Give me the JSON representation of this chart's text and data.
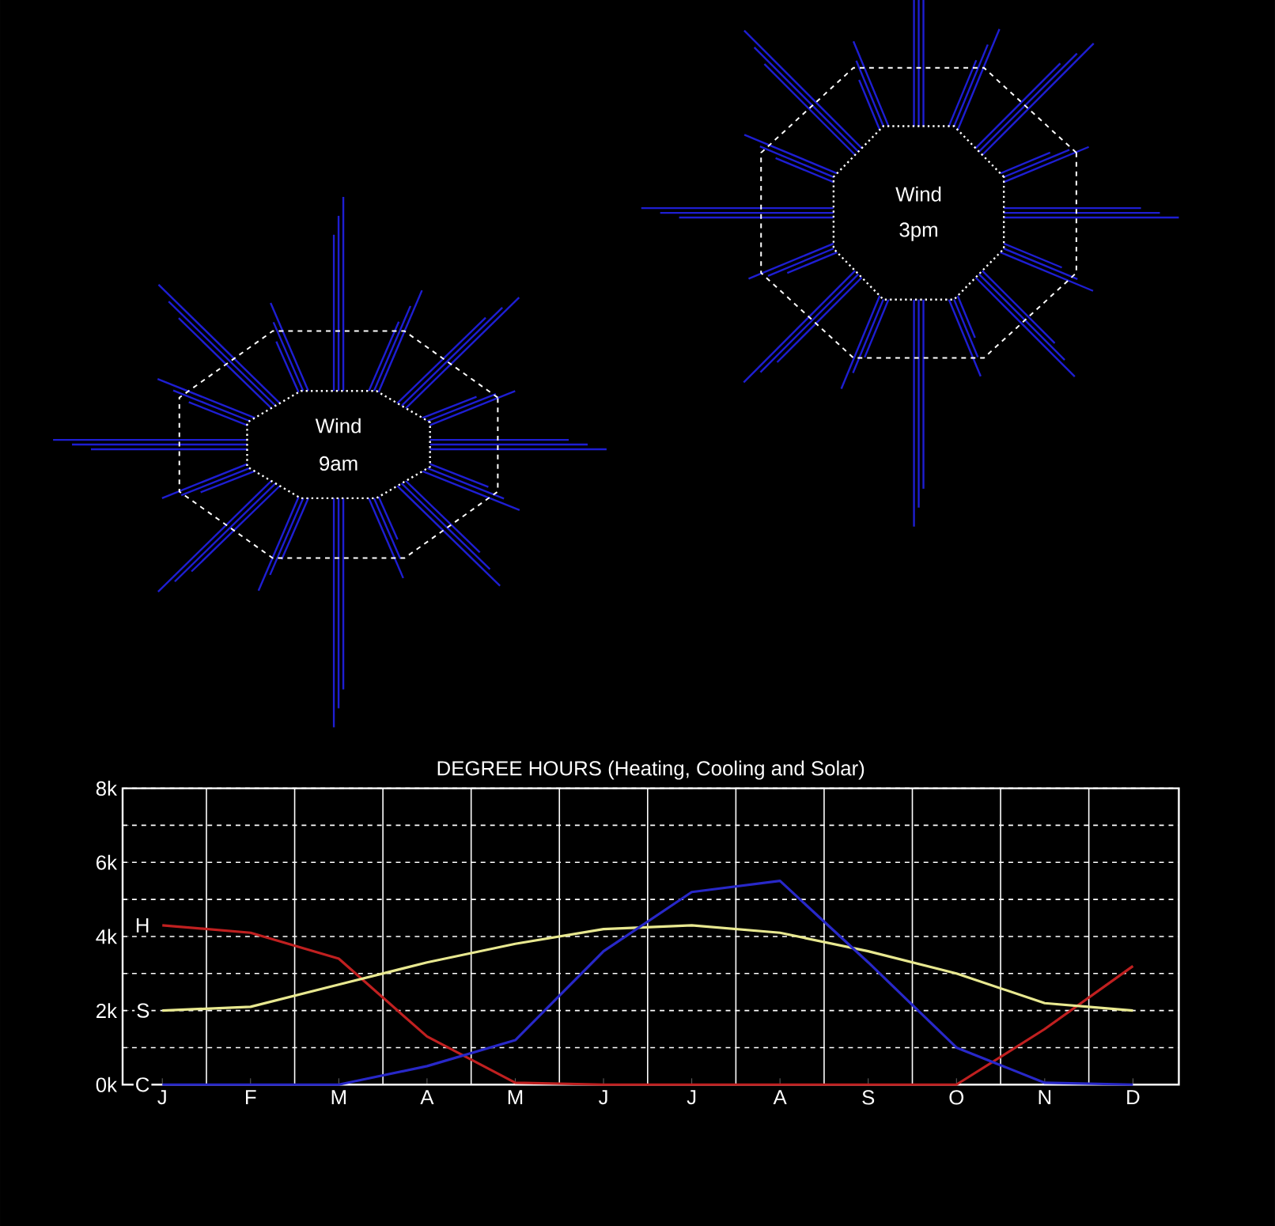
{
  "chart_data": [
    {
      "type": "other",
      "annotations": [
        "Wind",
        "9am"
      ]
    },
    {
      "type": "other",
      "annotations": [
        "Wind",
        "3pm"
      ]
    },
    {
      "type": "line",
      "title": "DEGREE HOURS (Heating, Cooling and Solar)",
      "categories": [
        "J",
        "F",
        "M",
        "A",
        "M",
        "J",
        "J",
        "A",
        "S",
        "O",
        "N",
        "D"
      ],
      "series": [
        {
          "name": "H",
          "color": "#c02020",
          "values": [
            4.3,
            4.1,
            3.4,
            1.3,
            0.05,
            0,
            0,
            0,
            0,
            0,
            1.5,
            3.2
          ]
        },
        {
          "name": "S",
          "color": "#e8e890",
          "values": [
            2.0,
            2.1,
            2.7,
            3.3,
            3.8,
            4.2,
            4.3,
            4.1,
            3.6,
            3.0,
            2.2,
            2.0
          ]
        },
        {
          "name": "C",
          "color": "#2828c8",
          "values": [
            0,
            0,
            0,
            0.5,
            1.2,
            3.6,
            5.2,
            5.5,
            3.3,
            1.0,
            0.05,
            0
          ]
        }
      ],
      "ylim": [
        0,
        8
      ],
      "yticks": [
        {
          "value": 0,
          "label": "0k"
        },
        {
          "value": 1,
          "label": null
        },
        {
          "value": 2,
          "label": "2k"
        },
        {
          "value": 3,
          "label": null
        },
        {
          "value": 4,
          "label": "4k"
        },
        {
          "value": 5,
          "label": null
        },
        {
          "value": 6,
          "label": "6k"
        },
        {
          "value": 7,
          "label": null
        },
        {
          "value": 8,
          "label": "8k"
        }
      ],
      "grid": true,
      "marker": "none",
      "line_style": "solid"
    }
  ]
}
